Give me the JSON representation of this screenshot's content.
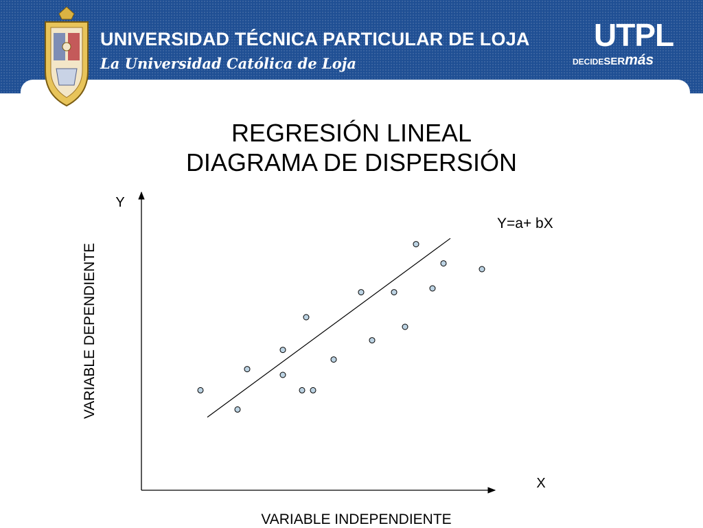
{
  "header": {
    "university_name": "UNIVERSIDAD TÉCNICA PARTICULAR DE LOJA",
    "motto": "La Universidad Católica de Loja",
    "brand": "UTPL",
    "slogan_part1": "DECIDE",
    "slogan_part2": "SER",
    "slogan_part3": "más"
  },
  "slide": {
    "title_line1": "REGRESIÓN LINEAL",
    "title_line2": "DIAGRAMA DE DISPERSIÓN"
  },
  "colors": {
    "banner": "#1f4f94",
    "point_fill": "#bcd3e3",
    "ink": "#000000"
  },
  "chart_data": {
    "type": "scatter",
    "title": "",
    "xlabel": "VARIABLE INDEPENDIENTE",
    "ylabel": "VARIABLE DEPENDIENTE",
    "x_axis_letter": "X",
    "y_axis_letter": "Y",
    "equation": "Y=a+ bX",
    "grid": false,
    "points": [
      {
        "x": 4.3,
        "y": 5.2
      },
      {
        "x": 7.0,
        "y": 4.2
      },
      {
        "x": 7.7,
        "y": 6.3
      },
      {
        "x": 10.3,
        "y": 6.0
      },
      {
        "x": 10.3,
        "y": 7.3
      },
      {
        "x": 11.7,
        "y": 5.2
      },
      {
        "x": 12.5,
        "y": 5.2
      },
      {
        "x": 12.0,
        "y": 9.0
      },
      {
        "x": 14.0,
        "y": 6.8
      },
      {
        "x": 16.0,
        "y": 10.3
      },
      {
        "x": 16.8,
        "y": 7.8
      },
      {
        "x": 18.4,
        "y": 10.3
      },
      {
        "x": 19.2,
        "y": 8.5
      },
      {
        "x": 20.0,
        "y": 12.8
      },
      {
        "x": 21.2,
        "y": 10.5
      },
      {
        "x": 22.0,
        "y": 11.8
      },
      {
        "x": 24.8,
        "y": 11.5
      }
    ],
    "trend_line": {
      "x1": 4.8,
      "y1": 3.8,
      "x2": 22.5,
      "y2": 13.1
    },
    "xlim": [
      0,
      25
    ],
    "ylim": [
      0,
      15
    ]
  }
}
